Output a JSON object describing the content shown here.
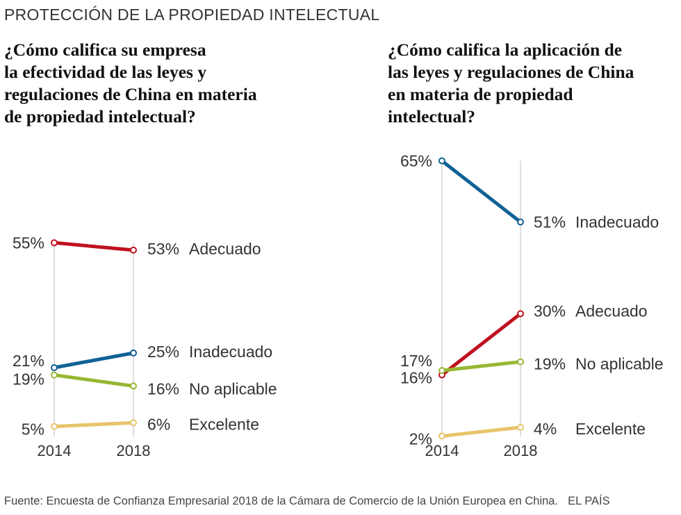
{
  "header": "PROTECCIÓN DE LA PROPIEDAD INTELECTUAL",
  "chart_data": [
    {
      "type": "line",
      "title": "¿Cómo califica su empresa la efectividad de las leyes y regulaciones de China en materia de propiedad intelectual?",
      "title_lines": [
        "¿Cómo califica su empresa",
        "la efectividad de las leyes y",
        "regulaciones de China en materia",
        "de propiedad intelectual?"
      ],
      "categories": [
        "2014",
        "2018"
      ],
      "ylim": [
        0,
        70
      ],
      "series": [
        {
          "name": "Adecuado",
          "values": [
            55,
            53
          ],
          "start_label": "55%",
          "end_label": "53%",
          "color": "#c0111f"
        },
        {
          "name": "Inadecuado",
          "values": [
            21,
            25
          ],
          "start_label": "21%",
          "end_label": "25%",
          "color": "#0e6196"
        },
        {
          "name": "No aplicable",
          "values": [
            19,
            16
          ],
          "start_label": "19%",
          "end_label": "16%",
          "color": "#97b633"
        },
        {
          "name": "Excelente",
          "values": [
            5,
            6
          ],
          "start_label": "5%",
          "end_label": "6%",
          "color": "#e7c46b"
        }
      ]
    },
    {
      "type": "line",
      "title": "¿Cómo califica la aplicación de las leyes y regulaciones de China en materia de propiedad intelectual?",
      "title_lines": [
        "¿Cómo califica la aplicación de",
        "las leyes y regulaciones de China",
        "en materia de propiedad",
        "intelectual?"
      ],
      "categories": [
        "2014",
        "2018"
      ],
      "ylim": [
        0,
        70
      ],
      "series": [
        {
          "name": "Inadecuado",
          "values": [
            65,
            51
          ],
          "start_label": "65%",
          "end_label": "51%",
          "color": "#0e6196"
        },
        {
          "name": "Adecuado",
          "values": [
            16,
            30
          ],
          "start_label": "16%",
          "end_label": "30%",
          "color": "#c0111f"
        },
        {
          "name": "No aplicable",
          "values": [
            17,
            19
          ],
          "start_label": "17%",
          "end_label": "19%",
          "color": "#97b633"
        },
        {
          "name": "Excelente",
          "values": [
            2,
            4
          ],
          "start_label": "2%",
          "end_label": "4%",
          "color": "#e7c46b"
        }
      ]
    }
  ],
  "footer": {
    "source": "Fuente: Encuesta de Confianza Empresarial 2018 de la Cámara de Comercio de la Unión Europea en China.",
    "brand": "EL PAÍS"
  }
}
